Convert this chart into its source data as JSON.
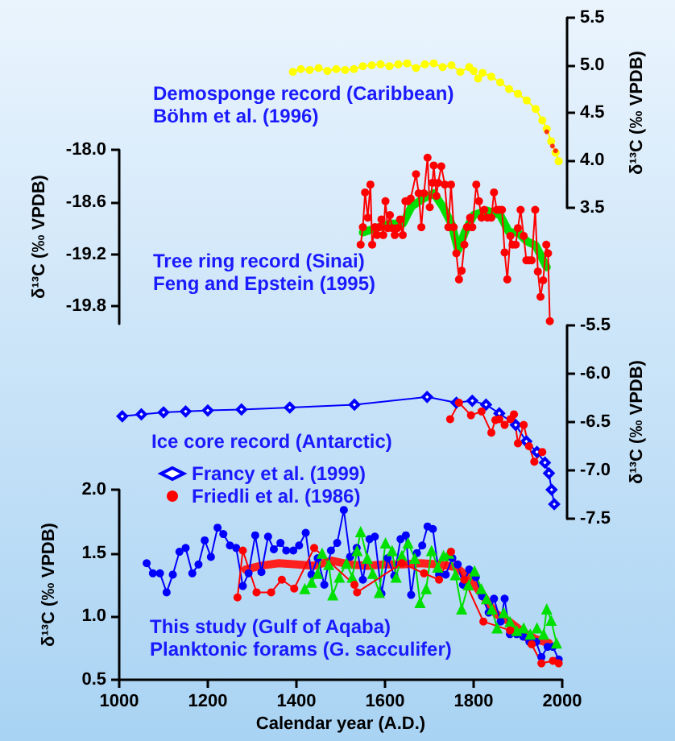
{
  "chart_data": [
    {
      "type": "line",
      "annotations": [
        "Demosponge record (Caribbean)",
        "Böhm et al. (1996)"
      ],
      "y2label": "δ¹³C (‰ VPDB)",
      "xlim": [
        1000,
        2000
      ],
      "y2lim": [
        3.5,
        5.5
      ],
      "y2ticks": [
        3.5,
        {
          "value": 4,
          "label": "4.0"
        },
        4.5,
        {
          "value": 5,
          "label": "5.0"
        },
        5.5
      ],
      "tick_labels": "y",
      "grid": false,
      "legend": false,
      "series": [
        {
          "color": "#ffff00",
          "marker": "circle",
          "axis": "y2",
          "x": [
            1392,
            1410,
            1430,
            1450,
            1470,
            1490,
            1510,
            1530,
            1550,
            1570,
            1590,
            1610,
            1630,
            1650,
            1670,
            1690,
            1710,
            1730,
            1750,
            1770,
            1790,
            1800,
            1810,
            1820,
            1840,
            1860,
            1880,
            1900,
            1920,
            1940,
            1955,
            1965,
            1975,
            1985,
            1992
          ],
          "values": [
            4.93,
            4.96,
            4.95,
            4.97,
            4.94,
            4.96,
            4.95,
            4.96,
            4.99,
            5.0,
            5.01,
            4.99,
            5.01,
            5.02,
            4.97,
            5.01,
            5.02,
            4.98,
            5.0,
            4.93,
            4.98,
            4.94,
            4.86,
            4.92,
            4.88,
            4.82,
            4.75,
            4.7,
            4.63,
            4.54,
            4.42,
            4.33,
            4.2,
            4.08,
            3.99
          ]
        },
        {
          "type": "scatter",
          "color": "#ff0000",
          "marker": "circle",
          "axis": "y2",
          "x": [
            1965,
            1978,
            1985
          ],
          "values": [
            4.3,
            4.15,
            4.1
          ]
        }
      ]
    },
    {
      "type": "line",
      "annotations": [
        "Tree ring record (Sinai)",
        "Feng and Epstein (1995)"
      ],
      "ylabel": "δ¹³C (‰ VPDB)",
      "xlim": [
        1000,
        2000
      ],
      "ylim": [
        -20.0,
        -18.0
      ],
      "yticks": [
        {
          "value": -18,
          "label": "-18.0"
        },
        -18.6,
        -19.2,
        -19.8
      ],
      "tick_labels": "y",
      "grid": false,
      "legend": false,
      "series": [
        {
          "color": "#00e000",
          "marker": "none",
          "x": [
            1550,
            1580,
            1610,
            1640,
            1660,
            1690,
            1710,
            1730,
            1750,
            1765,
            1780,
            1800,
            1830,
            1860,
            1880,
            1900,
            1920,
            1940,
            1955,
            1965
          ],
          "values": [
            -18.95,
            -18.9,
            -18.85,
            -18.85,
            -18.65,
            -18.55,
            -18.5,
            -18.65,
            -18.85,
            -19.15,
            -18.95,
            -18.75,
            -18.7,
            -18.75,
            -18.95,
            -18.95,
            -19.05,
            -19.1,
            -19.25,
            -19.35
          ]
        },
        {
          "color": "#ff0000",
          "marker": "circle",
          "x": [
            1545,
            1550,
            1555,
            1561,
            1567,
            1571,
            1577,
            1582,
            1587,
            1592,
            1596,
            1601,
            1606,
            1611,
            1616,
            1622,
            1628,
            1634,
            1640,
            1646,
            1652,
            1658,
            1670,
            1676,
            1682,
            1688,
            1696,
            1701,
            1707,
            1710,
            1716,
            1720,
            1727,
            1735,
            1743,
            1749,
            1755,
            1761,
            1767,
            1773,
            1779,
            1785,
            1792,
            1797,
            1806,
            1812,
            1818,
            1824,
            1831,
            1840,
            1846,
            1852,
            1858,
            1864,
            1870,
            1876,
            1883,
            1888,
            1895,
            1900,
            1906,
            1913,
            1919,
            1925,
            1931,
            1939,
            1945,
            1951,
            1957,
            1964,
            1968,
            1972
          ],
          "values": [
            -19.09,
            -18.89,
            -18.49,
            -18.78,
            -18.4,
            -19.09,
            -18.89,
            -18.98,
            -18.89,
            -18.8,
            -18.98,
            -18.59,
            -18.9,
            -18.75,
            -18.9,
            -18.98,
            -18.9,
            -18.8,
            -18.98,
            -18.59,
            -18.59,
            -18.56,
            -18.28,
            -18.5,
            -18.89,
            -18.5,
            -18.09,
            -18.66,
            -18.38,
            -18.18,
            -18.53,
            -18.38,
            -18.19,
            -18.4,
            -18.89,
            -18.4,
            -18.89,
            -19.19,
            -19.49,
            -19.39,
            -19.09,
            -18.89,
            -18.78,
            -18.89,
            -18.4,
            -18.59,
            -18.78,
            -18.69,
            -18.78,
            -18.78,
            -18.49,
            -18.69,
            -18.69,
            -18.69,
            -19.18,
            -19.49,
            -18.99,
            -19.09,
            -19.09,
            -18.9,
            -18.69,
            -18.99,
            -19.27,
            -19.27,
            -19.27,
            -18.69,
            -19.4,
            -19.69,
            -19.5,
            -19.09,
            -19.19,
            -19.97
          ]
        }
      ]
    },
    {
      "type": "line",
      "legend_title": "Ice core record (Antarctic)",
      "y2label": "δ¹³C (‰ VPDB)",
      "xlim": [
        1000,
        2000
      ],
      "y2lim": [
        -7.5,
        -5.5
      ],
      "y2ticks": [
        -5.5,
        {
          "value": -6,
          "label": "-6.0"
        },
        -6.5,
        {
          "value": -7,
          "label": "-7.0"
        },
        -7.5
      ],
      "tick_labels": "y",
      "grid": false,
      "legend": "bottom left",
      "series": [
        {
          "name": "Francy et al. (1999)",
          "color": "#0000ff",
          "marker": "diamond",
          "axis": "y2",
          "x": [
            1007,
            1050,
            1100,
            1150,
            1200,
            1276,
            1385,
            1531,
            1695,
            1761,
            1797,
            1828,
            1858,
            1895,
            1919,
            1943,
            1961,
            1970,
            1976,
            1982
          ],
          "values": [
            -6.44,
            -6.42,
            -6.4,
            -6.39,
            -6.38,
            -6.37,
            -6.35,
            -6.32,
            -6.24,
            -6.3,
            -6.28,
            -6.32,
            -6.41,
            -6.53,
            -6.7,
            -6.81,
            -6.92,
            -7.03,
            -7.2,
            -7.35
          ]
        },
        {
          "name": "Friedli et al. (1986)",
          "color": "#ff0000",
          "marker": "circle",
          "axis": "y2",
          "x": [
            1747,
            1767,
            1794,
            1818,
            1840,
            1849,
            1858,
            1870,
            1883,
            1891,
            1900,
            1913,
            1925,
            1937,
            1955
          ],
          "values": [
            -6.47,
            -6.3,
            -6.43,
            -6.39,
            -6.61,
            -6.48,
            -6.47,
            -6.53,
            -6.47,
            -6.42,
            -6.72,
            -6.53,
            -6.75,
            -6.91,
            -6.81
          ]
        }
      ]
    },
    {
      "type": "line",
      "annotations": [
        "This study (Gulf of Aqaba)",
        "Planktonic forams (G. sacculifer)"
      ],
      "xlabel": "Calendar year (A.D.)",
      "ylabel": "δ¹³C (‰ VPDB)",
      "xlim": [
        1000,
        2000
      ],
      "xticks": [
        1000,
        1200,
        1400,
        1600,
        1800,
        2000
      ],
      "ylim": [
        0.5,
        2.0
      ],
      "yticks": [
        0.5,
        {
          "value": 1,
          "label": "1.0"
        },
        1.5,
        {
          "value": 2,
          "label": "2.0"
        }
      ],
      "grid": false,
      "legend": false,
      "series": [
        {
          "color": "#0000ff",
          "marker": "circle",
          "x": [
            1062,
            1076,
            1092,
            1107,
            1121,
            1136,
            1150,
            1165,
            1179,
            1193,
            1207,
            1222,
            1235,
            1250,
            1264,
            1279,
            1292,
            1307,
            1321,
            1336,
            1349,
            1364,
            1377,
            1393,
            1406,
            1421,
            1434,
            1448,
            1463,
            1478,
            1492,
            1507,
            1521,
            1536,
            1550,
            1565,
            1577,
            1592,
            1606,
            1621,
            1635,
            1647,
            1659,
            1672,
            1684,
            1696,
            1708,
            1722,
            1737,
            1752,
            1764,
            1776,
            1790,
            1805,
            1819,
            1834,
            1846,
            1861,
            1870,
            1882,
            1897,
            1912,
            1926,
            1941,
            1953,
            1967,
            1979,
            1992
          ],
          "values": [
            1.42,
            1.34,
            1.34,
            1.19,
            1.33,
            1.51,
            1.54,
            1.34,
            1.41,
            1.6,
            1.47,
            1.7,
            1.65,
            1.56,
            1.54,
            1.24,
            1.34,
            1.64,
            1.35,
            1.63,
            1.53,
            1.58,
            1.52,
            1.52,
            1.56,
            1.66,
            1.33,
            1.46,
            1.25,
            1.52,
            1.58,
            1.84,
            1.47,
            1.54,
            1.29,
            1.61,
            1.63,
            1.18,
            1.46,
            1.32,
            1.61,
            1.64,
            1.17,
            1.5,
            1.56,
            1.71,
            1.69,
            1.33,
            1.33,
            1.46,
            1.41,
            1.25,
            1.37,
            1.31,
            1.16,
            1.03,
            1.14,
            0.96,
            1.14,
            0.86,
            0.86,
            0.84,
            0.8,
            0.8,
            0.68,
            0.76,
            0.76,
            0.66
          ]
        },
        {
          "color": "#00e000",
          "marker": "triangle",
          "x": [
            1419,
            1434,
            1448,
            1458,
            1473,
            1482,
            1497,
            1513,
            1526,
            1537,
            1545,
            1560,
            1572,
            1587,
            1601,
            1616,
            1625,
            1638,
            1652,
            1667,
            1679,
            1693,
            1705,
            1719,
            1732,
            1744,
            1759,
            1773,
            1788,
            1802,
            1817,
            1829,
            1841,
            1853,
            1868,
            1882,
            1897,
            1913,
            1928,
            1943,
            1958,
            1965,
            1975,
            1987
          ],
          "values": [
            1.22,
            1.27,
            1.34,
            1.5,
            1.41,
            1.17,
            1.31,
            1.42,
            1.31,
            1.52,
            1.67,
            1.46,
            1.34,
            1.19,
            1.58,
            1.52,
            1.31,
            1.48,
            1.58,
            1.46,
            1.11,
            1.22,
            1.52,
            1.39,
            1.48,
            1.5,
            1.33,
            1.06,
            1.25,
            1.36,
            1.22,
            1.14,
            1.06,
            0.91,
            1.03,
            0.96,
            0.89,
            0.91,
            0.86,
            0.91,
            0.86,
            1.06,
            0.97,
            0.79
          ]
        },
        {
          "color": "#ff0000",
          "marker": "circle",
          "x": [
            1267,
            1279,
            1310,
            1343,
            1367,
            1395,
            1440,
            1531,
            1537,
            1638,
            1688,
            1722,
            1749,
            1779,
            1822,
            1882,
            1931,
            1953,
            1979,
            1992
          ],
          "values": [
            1.15,
            1.52,
            1.19,
            1.19,
            1.29,
            1.22,
            1.54,
            1.25,
            1.19,
            1.42,
            1.34,
            1.29,
            1.51,
            1.29,
            0.96,
            0.89,
            0.78,
            0.63,
            0.65,
            0.63
          ]
        },
        {
          "color": "#ff2020",
          "marker": "none",
          "x": [
            1285,
            1320,
            1360,
            1400,
            1440,
            1480,
            1520,
            1560,
            1600,
            1640,
            1680,
            1720,
            1760,
            1790,
            1820,
            1850,
            1880,
            1910,
            1940,
            1970
          ],
          "values": [
            1.37,
            1.4,
            1.42,
            1.41,
            1.4,
            1.44,
            1.41,
            1.4,
            1.41,
            1.41,
            1.42,
            1.41,
            1.39,
            1.3,
            1.17,
            1.02,
            0.96,
            0.88,
            0.82,
            0.79
          ]
        }
      ]
    }
  ]
}
